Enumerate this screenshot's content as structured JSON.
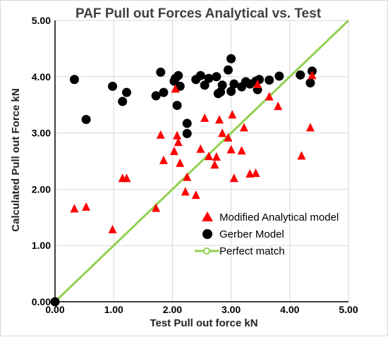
{
  "chart_data": {
    "type": "scatter",
    "title": "PAF Pull out Forces Analytical vs. Test",
    "xlabel": "Test Pull out force kN",
    "ylabel": "Calculated Pull out Force kN",
    "xlim": [
      0,
      5
    ],
    "ylim": [
      0,
      5
    ],
    "x_ticks": [
      "0.00",
      "1.00",
      "2.00",
      "3.00",
      "4.00",
      "5.00"
    ],
    "y_ticks": [
      "0.00",
      "1.00",
      "2.00",
      "3.00",
      "4.00",
      "5.00"
    ],
    "grid": true,
    "legend_position": "bottom-right inside plot",
    "series": [
      {
        "name": "Modified Analytical model",
        "marker": "triangle",
        "color": "#ff0000",
        "points": [
          [
            0.33,
            1.65
          ],
          [
            0.53,
            1.68
          ],
          [
            0.98,
            1.28
          ],
          [
            1.15,
            2.19
          ],
          [
            1.22,
            2.19
          ],
          [
            1.72,
            1.66
          ],
          [
            1.8,
            2.96
          ],
          [
            1.85,
            2.51
          ],
          [
            2.03,
            2.67
          ],
          [
            2.05,
            3.78
          ],
          [
            2.08,
            2.95
          ],
          [
            2.1,
            2.83
          ],
          [
            2.13,
            2.46
          ],
          [
            2.22,
            1.95
          ],
          [
            2.25,
            2.21
          ],
          [
            2.4,
            1.89
          ],
          [
            2.48,
            2.71
          ],
          [
            2.55,
            3.26
          ],
          [
            2.62,
            2.58
          ],
          [
            2.72,
            2.43
          ],
          [
            2.75,
            2.57
          ],
          [
            2.8,
            3.23
          ],
          [
            2.85,
            2.99
          ],
          [
            2.95,
            2.91
          ],
          [
            3.0,
            2.7
          ],
          [
            3.02,
            3.32
          ],
          [
            3.05,
            2.19
          ],
          [
            3.18,
            2.68
          ],
          [
            3.22,
            3.09
          ],
          [
            3.32,
            2.27
          ],
          [
            3.42,
            2.28
          ],
          [
            3.45,
            3.86
          ],
          [
            3.65,
            3.64
          ],
          [
            3.8,
            3.47
          ],
          [
            4.2,
            2.59
          ],
          [
            4.35,
            3.09
          ],
          [
            4.38,
            4.02
          ]
        ]
      },
      {
        "name": "Gerber Model",
        "marker": "circle",
        "color": "#000000",
        "points": [
          [
            0.0,
            0.0
          ],
          [
            0.33,
            3.95
          ],
          [
            0.53,
            3.24
          ],
          [
            0.98,
            3.83
          ],
          [
            1.15,
            3.56
          ],
          [
            1.22,
            3.72
          ],
          [
            1.72,
            3.66
          ],
          [
            1.8,
            4.08
          ],
          [
            1.85,
            3.72
          ],
          [
            2.03,
            3.92
          ],
          [
            2.05,
            3.97
          ],
          [
            2.08,
            3.49
          ],
          [
            2.1,
            4.02
          ],
          [
            2.13,
            3.83
          ],
          [
            2.25,
            3.17
          ],
          [
            2.25,
            2.99
          ],
          [
            2.4,
            3.95
          ],
          [
            2.48,
            4.02
          ],
          [
            2.55,
            3.85
          ],
          [
            2.62,
            3.97
          ],
          [
            2.75,
            4.0
          ],
          [
            2.78,
            3.7
          ],
          [
            2.82,
            3.73
          ],
          [
            2.85,
            3.85
          ],
          [
            2.95,
            4.12
          ],
          [
            3.0,
            4.32
          ],
          [
            3.0,
            3.74
          ],
          [
            3.05,
            3.87
          ],
          [
            3.18,
            3.82
          ],
          [
            3.25,
            3.91
          ],
          [
            3.32,
            3.87
          ],
          [
            3.42,
            3.92
          ],
          [
            3.45,
            3.77
          ],
          [
            3.48,
            3.95
          ],
          [
            3.65,
            3.94
          ],
          [
            3.82,
            4.01
          ],
          [
            4.18,
            4.03
          ],
          [
            4.35,
            3.89
          ],
          [
            4.38,
            4.1
          ]
        ]
      },
      {
        "name": "Perfect match",
        "marker": "line",
        "color": "#92d050",
        "points": [
          [
            0,
            0
          ],
          [
            5,
            5
          ]
        ]
      }
    ]
  }
}
